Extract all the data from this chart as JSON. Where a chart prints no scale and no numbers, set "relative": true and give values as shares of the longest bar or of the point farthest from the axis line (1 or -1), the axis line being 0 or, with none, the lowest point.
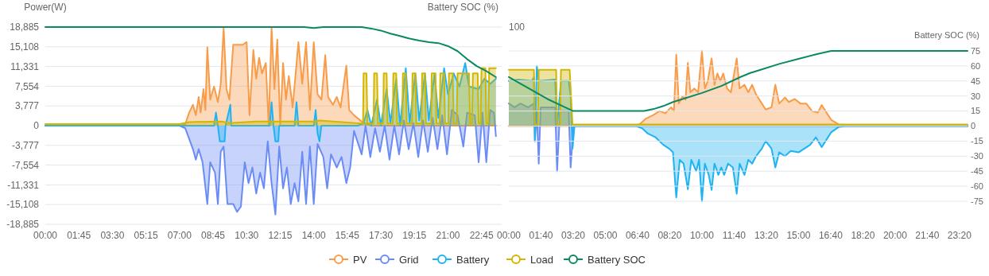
{
  "chart_data": [
    {
      "type": "area",
      "ylabel": "Power(W)",
      "xlim": [
        0,
        23.8
      ],
      "xticks": [
        {
          "value": 0,
          "label": "00:00"
        },
        {
          "value": 1.75,
          "label": "01:45"
        },
        {
          "value": 3.5,
          "label": "03:30"
        },
        {
          "value": 5.25,
          "label": "05:15"
        },
        {
          "value": 7,
          "label": "07:00"
        },
        {
          "value": 8.75,
          "label": "08:45"
        },
        {
          "value": 10.5,
          "label": "10:30"
        },
        {
          "value": 12.25,
          "label": "12:15"
        },
        {
          "value": 14,
          "label": "14:00"
        },
        {
          "value": 15.75,
          "label": "15:45"
        },
        {
          "value": 17.5,
          "label": "17:30"
        },
        {
          "value": 19.25,
          "label": "19:15"
        },
        {
          "value": 21,
          "label": "21:00"
        },
        {
          "value": 22.75,
          "label": "22:45"
        }
      ],
      "ylim": [
        -18885,
        18885
      ],
      "yticks": [
        {
          "value": 18885,
          "label": "18,885"
        },
        {
          "value": 15108,
          "label": "15,108"
        },
        {
          "value": 11331,
          "label": "11,331"
        },
        {
          "value": 7554,
          "label": "7,554"
        },
        {
          "value": 3777,
          "label": "3,777"
        },
        0,
        {
          "value": -3777,
          "label": "-3,777"
        },
        {
          "value": -7554,
          "label": "-7,554"
        },
        {
          "value": -11331,
          "label": "-11,331"
        },
        {
          "value": -15108,
          "label": "-15,108"
        },
        {
          "value": -18885,
          "label": "-18,885"
        }
      ],
      "grid": "y",
      "legend": "bottom",
      "series": [
        {
          "name": "PV",
          "color": "#f89c4a",
          "x": [
            0,
            7.0,
            7.3,
            7.5,
            7.7,
            7.85,
            8.0,
            8.1,
            8.25,
            8.35,
            8.45,
            8.6,
            8.8,
            9.0,
            9.15,
            9.3,
            9.45,
            9.6,
            9.8,
            10.3,
            10.5,
            10.65,
            10.85,
            11.0,
            11.15,
            11.3,
            11.5,
            11.65,
            11.8,
            11.95,
            12.1,
            12.25,
            12.4,
            12.55,
            12.7,
            12.9,
            13.2,
            13.4,
            13.6,
            13.8,
            14.0,
            14.2,
            14.4,
            14.6,
            14.75,
            15.0,
            15.2,
            15.4,
            15.7,
            15.85,
            16.1,
            16.6,
            17.0,
            23.5
          ],
          "values": [
            0,
            0,
            300,
            2500,
            4000,
            2000,
            5500,
            2500,
            7000,
            3000,
            15000,
            5000,
            7500,
            4500,
            8000,
            18800,
            7000,
            5000,
            15500,
            15500,
            16000,
            2000,
            14500,
            9000,
            13000,
            10000,
            12000,
            0,
            18800,
            7000,
            16500,
            0,
            12000,
            5000,
            9500,
            3500,
            16000,
            8000,
            16000,
            3000,
            16000,
            6000,
            5000,
            13500,
            5500,
            4000,
            5500,
            3500,
            11500,
            3000,
            2000,
            500,
            0,
            0
          ]
        },
        {
          "name": "Grid",
          "color": "#6b8cf5",
          "x": [
            0,
            7.0,
            7.3,
            7.5,
            7.7,
            7.85,
            8.0,
            8.2,
            8.45,
            8.6,
            8.85,
            9.0,
            9.15,
            9.3,
            9.5,
            9.8,
            10.0,
            10.2,
            10.4,
            10.6,
            10.8,
            11.0,
            11.2,
            11.4,
            11.6,
            11.8,
            12.0,
            12.2,
            12.4,
            12.6,
            12.8,
            13.0,
            13.2,
            13.4,
            13.6,
            13.8,
            14.0,
            14.2,
            14.5,
            14.7,
            14.9,
            15.2,
            15.45,
            15.7,
            15.9,
            16.1,
            16.5,
            16.7,
            16.95,
            17.2,
            17.45,
            17.7,
            17.95,
            18.2,
            18.45,
            18.7,
            18.95,
            19.2,
            19.45,
            19.7,
            19.95,
            20.2,
            20.45,
            20.7,
            20.95,
            21.2,
            21.5,
            21.8,
            22.0,
            22.4,
            22.6,
            22.8,
            23.0,
            23.2,
            23.4,
            23.5
          ],
          "values": [
            0,
            0,
            -500,
            -2500,
            -4500,
            -6500,
            -4500,
            -7000,
            -15000,
            -7000,
            -9000,
            -15000,
            -5000,
            -4000,
            -15000,
            -15000,
            -16500,
            -15500,
            -7000,
            -11000,
            -8000,
            -13000,
            -9000,
            -12000,
            -3000,
            -11000,
            -17000,
            -4000,
            -12000,
            -8000,
            -15000,
            -11000,
            -14500,
            -5000,
            -15000,
            -4000,
            -15000,
            -3500,
            -6000,
            -12000,
            -5500,
            -8000,
            -6000,
            -11000,
            -8000,
            -1000,
            -5500,
            0,
            -6000,
            -500,
            -5000,
            0,
            -6500,
            0,
            -5500,
            1000,
            -4500,
            500,
            -6000,
            1000,
            -5000,
            1500,
            -4500,
            2000,
            -5500,
            3000,
            2000,
            -4000,
            2500,
            2000,
            -7000,
            2500,
            -7000,
            3000,
            2500,
            -2000
          ]
        },
        {
          "name": "Battery",
          "color": "#1fb3f2",
          "x": [
            0,
            8.8,
            8.9,
            9.0,
            9.1,
            9.35,
            9.4,
            9.65,
            9.7,
            11.7,
            11.8,
            11.9,
            12.0,
            12.15,
            12.2,
            13.0,
            13.1,
            13.2,
            14.0,
            14.1,
            14.2,
            14.3,
            14.4,
            16.3,
            16.6,
            16.8,
            17.0,
            17.3,
            17.5,
            17.8,
            18.0,
            18.3,
            18.5,
            18.8,
            19.0,
            19.3,
            19.5,
            19.8,
            20.0,
            20.3,
            20.5,
            20.8,
            21.0,
            21.3,
            21.6,
            21.9,
            22.1,
            22.6,
            22.9,
            23.2,
            23.5
          ],
          "values": [
            0,
            0,
            2500,
            0,
            -3000,
            -3000,
            0,
            4000,
            0,
            0,
            4500,
            0,
            -3000,
            -3000,
            0,
            0,
            4500,
            0,
            0,
            3000,
            -1500,
            -3000,
            0,
            0,
            500,
            3000,
            0,
            5000,
            0,
            7000,
            500,
            9000,
            0,
            11000,
            500,
            10000,
            1000,
            10000,
            1000,
            10000,
            1500,
            11000,
            6000,
            10000,
            7500,
            12000,
            7500,
            7000,
            9000,
            8000,
            9000
          ]
        },
        {
          "name": "Load",
          "color": "#d2b600",
          "x": [
            0,
            7.0,
            7.5,
            9.2,
            9.6,
            11.0,
            14.0,
            14.3,
            16.57,
            16.6,
            16.75,
            16.8,
            17.12,
            17.15,
            17.3,
            17.35,
            17.62,
            17.65,
            17.8,
            17.85,
            18.12,
            18.15,
            18.3,
            18.35,
            18.62,
            18.65,
            18.8,
            18.85,
            19.12,
            19.15,
            19.3,
            19.35,
            19.62,
            19.65,
            19.8,
            19.85,
            20.12,
            20.15,
            20.35,
            20.4,
            20.57,
            20.6,
            20.8,
            20.85,
            21.02,
            21.05,
            21.25,
            21.3,
            21.45,
            21.5,
            22.1,
            22.15,
            22.25,
            22.3,
            22.55,
            22.6,
            22.7,
            22.75,
            22.95,
            23.0,
            23.1,
            23.15,
            23.5
          ],
          "values": [
            300,
            300,
            700,
            800,
            500,
            800,
            800,
            1000,
            400,
            10000,
            10000,
            400,
            400,
            10000,
            10000,
            400,
            400,
            10000,
            10000,
            400,
            400,
            10000,
            10000,
            400,
            400,
            10000,
            10000,
            400,
            400,
            10000,
            10000,
            400,
            400,
            10000,
            10000,
            400,
            400,
            10000,
            10000,
            400,
            400,
            10000,
            10000,
            400,
            400,
            10000,
            10000,
            400,
            400,
            10000,
            10000,
            400,
            400,
            10000,
            10000,
            400,
            400,
            11000,
            11000,
            400,
            400,
            11000,
            11000
          ]
        }
      ]
    },
    {
      "type": "line",
      "relative": true,
      "y2label": "Battery SOC (%)",
      "annotations": [
        "100"
      ],
      "categories": [
        null,
        null,
        null,
        null,
        null,
        null,
        null,
        null,
        null,
        null,
        null,
        null,
        null,
        null,
        null,
        null,
        null,
        null,
        null,
        null,
        null,
        null,
        null,
        null,
        null,
        null,
        null,
        null,
        null,
        null,
        null,
        null,
        null,
        null,
        null,
        null,
        null,
        null,
        null,
        null,
        null,
        null,
        null,
        null,
        null,
        null,
        null,
        null
      ],
      "tick_labels": false,
      "legend": "bottom",
      "series": [
        {
          "name": "Battery SOC",
          "color": "#0b8a62",
          "values": [
            1,
            1,
            1,
            1,
            1,
            1,
            1,
            1,
            1,
            1,
            1,
            1,
            1,
            1,
            1,
            1,
            1,
            1,
            1,
            1,
            1,
            1,
            1,
            1,
            1,
            1,
            1,
            1,
            0.98,
            1,
            1,
            1,
            1,
            1,
            0.97,
            0.93,
            0.87,
            0.82,
            0.77,
            0.73,
            0.7,
            0.68,
            0.62,
            0.52,
            0.36,
            0.22,
            0.12,
            0
          ]
        }
      ]
    },
    {
      "type": "area",
      "relative": true,
      "xlim": [
        0,
        23.75
      ],
      "xticks": [
        {
          "value": 0,
          "label": "00:00"
        },
        {
          "value": 1.6667,
          "label": "01:40"
        },
        {
          "value": 3.3333,
          "label": "03:20"
        },
        {
          "value": 5,
          "label": "05:00"
        },
        {
          "value": 6.6667,
          "label": "06:40"
        },
        {
          "value": 8.3333,
          "label": "08:20"
        },
        {
          "value": 10,
          "label": "10:00"
        },
        {
          "value": 11.6667,
          "label": "11:40"
        },
        {
          "value": 13.3333,
          "label": "13:20"
        },
        {
          "value": 15,
          "label": "15:00"
        },
        {
          "value": 16.6667,
          "label": "16:40"
        },
        {
          "value": 18.3333,
          "label": "18:20"
        },
        {
          "value": 20,
          "label": "20:00"
        },
        {
          "value": 21.6667,
          "label": "21:40"
        },
        {
          "value": 23.3333,
          "label": "23:20"
        }
      ],
      "series": [
        {
          "color": "#f89c4a",
          "x": [
            0,
            6.6,
            6.8,
            7.1,
            7.5,
            7.8,
            8.1,
            8.4,
            8.55,
            8.67,
            8.8,
            9.0,
            9.15,
            9.27,
            9.4,
            9.6,
            9.8,
            10.0,
            10.15,
            10.3,
            10.5,
            10.65,
            10.8,
            10.95,
            11.1,
            11.3,
            11.5,
            11.8,
            11.95,
            12.2,
            12.4,
            12.6,
            12.8,
            13.1,
            13.3,
            13.6,
            13.8,
            14.0,
            14.3,
            14.5,
            14.8,
            15.1,
            15.4,
            15.7,
            16.0,
            16.2,
            16.4,
            16.7,
            17.1,
            17.5,
            23.75
          ],
          "values": [
            0,
            0,
            0.03,
            0.1,
            0.15,
            0.2,
            0.17,
            0.25,
            0.2,
            0.95,
            0.3,
            0.4,
            0.35,
            0.84,
            0.45,
            0.5,
            0.45,
            1.0,
            0.5,
            0.6,
            0.9,
            0.55,
            0.7,
            0.6,
            0.7,
            0.5,
            0.45,
            0.9,
            0.5,
            0.55,
            0.45,
            0.55,
            0.42,
            0.3,
            0.22,
            0.25,
            0.55,
            0.3,
            0.38,
            0.32,
            0.36,
            0.3,
            0.3,
            0.2,
            0.18,
            0.28,
            0.2,
            0.08,
            0.02,
            0,
            0
          ]
        },
        {
          "color": "#6b8cf5",
          "x": [
            0,
            0.3,
            0.6,
            1.0,
            1.3,
            1.35,
            1.45,
            1.55,
            1.65,
            2.4,
            2.5,
            2.65,
            3.1,
            3.2,
            3.35,
            23.75
          ],
          "values": [
            0.3,
            0.25,
            0.3,
            0.25,
            0.3,
            -0.2,
            0.2,
            -0.5,
            0.25,
            0.25,
            -0.6,
            0.2,
            0.2,
            -0.55,
            0,
            0
          ]
        },
        {
          "color": "#1fb3f2",
          "x": [
            0,
            0.5,
            1.2,
            1.3,
            1.35,
            1.45,
            1.55,
            2.4,
            2.5,
            2.7,
            3.1,
            3.2,
            3.3,
            3.4,
            6.6,
            6.9,
            7.2,
            7.6,
            8.0,
            8.3,
            8.5,
            8.67,
            8.85,
            9.05,
            9.27,
            9.45,
            9.7,
            9.85,
            10.0,
            10.15,
            10.35,
            10.5,
            10.65,
            10.85,
            11.0,
            11.15,
            11.35,
            11.6,
            11.8,
            11.95,
            12.2,
            12.4,
            12.6,
            12.8,
            13.1,
            13.3,
            13.6,
            13.8,
            14.0,
            14.3,
            14.6,
            15.0,
            15.3,
            15.6,
            15.9,
            16.2,
            16.4,
            16.7,
            17.1,
            17.5,
            23.75
          ],
          "values": [
            0.6,
            0.62,
            0.6,
            0.65,
            -0.2,
            0.8,
            0.6,
            0.62,
            0,
            0.6,
            0.6,
            0.4,
            -0.3,
            0,
            0,
            -0.03,
            -0.1,
            -0.15,
            -0.25,
            -0.3,
            -0.35,
            -0.95,
            -0.45,
            -0.5,
            -0.84,
            -0.45,
            -0.6,
            -0.45,
            -1.0,
            -0.5,
            -0.65,
            -0.85,
            -0.5,
            -0.65,
            -0.55,
            -0.65,
            -0.5,
            -0.55,
            -0.9,
            -0.5,
            -0.65,
            -0.45,
            -0.5,
            -0.4,
            -0.3,
            -0.2,
            -0.3,
            -0.55,
            -0.35,
            -0.4,
            -0.33,
            -0.35,
            -0.3,
            -0.25,
            -0.15,
            -0.28,
            -0.2,
            -0.08,
            -0.01,
            0,
            0
          ]
        },
        {
          "color": "#d2b600",
          "x": [
            0,
            1.3,
            1.35,
            1.5,
            1.55,
            2.45,
            2.5,
            2.65,
            2.7,
            3.15,
            3.3,
            23.75
          ],
          "values": [
            0.75,
            0.75,
            0.02,
            0.02,
            0.75,
            0.75,
            0.02,
            0.02,
            0.75,
            0.75,
            0.02,
            0.02
          ]
        }
      ]
    },
    {
      "type": "line",
      "y2label": "Battery SOC (%)",
      "xlim": [
        0,
        23.75
      ],
      "tick_labels": "y",
      "y2lim": [
        -75,
        75
      ],
      "y2ticks": [
        75,
        60,
        45,
        30,
        15,
        0,
        -15,
        -30,
        -45,
        -60,
        -75
      ],
      "grid": "y",
      "series": [
        {
          "color": "#0b8a62",
          "axis": "y2",
          "x": [
            0,
            1.0,
            2.0,
            3.0,
            3.33,
            7.0,
            7.5,
            8.0,
            8.5,
            9.0,
            10.0,
            11.0,
            12.0,
            12.5,
            13.0,
            14.0,
            15.0,
            16.0,
            16.7,
            23.75
          ],
          "values": [
            49,
            38,
            27,
            18,
            15,
            15,
            17,
            20,
            24,
            27,
            33,
            40,
            49,
            53,
            56,
            62,
            67,
            72,
            75,
            75
          ]
        }
      ]
    }
  ]
}
